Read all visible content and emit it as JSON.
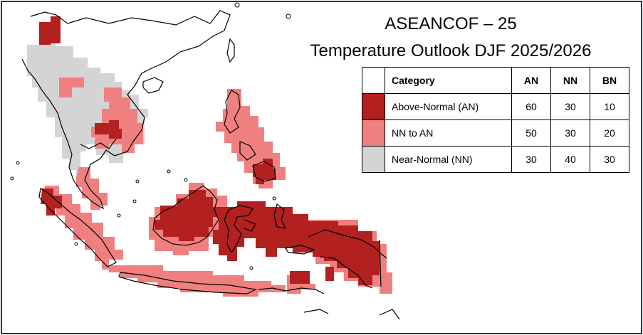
{
  "title": "ASEANCOF – 25",
  "subtitle": "Temperature Outlook DJF 2025/2026",
  "legend": {
    "headers": {
      "category": "Category",
      "an": "AN",
      "nn": "NN",
      "bn": "BN"
    },
    "rows": [
      {
        "category": "Above-Normal (AN)",
        "an": "60",
        "nn": "30",
        "bn": "10",
        "color": "#b2201f"
      },
      {
        "category": "NN to AN",
        "an": "50",
        "nn": "30",
        "bn": "20",
        "color": "#f08080"
      },
      {
        "category": "Near-Normal (NN)",
        "an": "30",
        "nn": "40",
        "bn": "30",
        "color": "#d4d4d4"
      }
    ]
  },
  "regions": {
    "above_normal": [
      "northern Myanmar",
      "central Cambodia",
      "Mindanao",
      "Borneo",
      "Sulawesi",
      "Maluku",
      "New Guinea",
      "northern Sumatra"
    ],
    "nn_to_an": [
      "Thailand",
      "Laos",
      "Cambodia",
      "Philippines",
      "Sumatra",
      "Java",
      "Lesser Sunda Islands",
      "Peninsular Malaysia"
    ],
    "near_normal": [
      "Myanmar",
      "northern Thailand",
      "northern Laos",
      "Vietnam"
    ]
  }
}
